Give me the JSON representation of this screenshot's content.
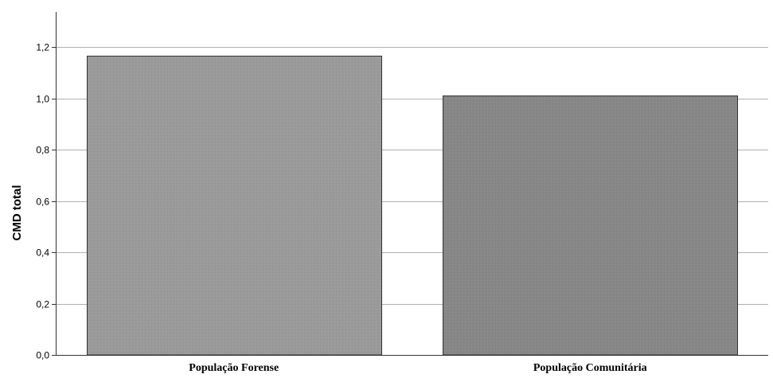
{
  "chart_data": {
    "type": "bar",
    "title": "",
    "xlabel": "",
    "ylabel": "CMD total",
    "categories": [
      "População Forense",
      "População Comunitária"
    ],
    "values": [
      1.165,
      1.01
    ],
    "ylim": [
      0,
      1.2
    ],
    "yticks": [
      "0,0",
      "0,2",
      "0,4",
      "0,6",
      "0,8",
      "1,0",
      "1,2"
    ],
    "ytick_values": [
      0,
      0.2,
      0.4,
      0.6,
      0.8,
      1.0,
      1.2
    ],
    "grid": true,
    "legend": "none",
    "bar_colors": [
      "#9a9a9a",
      "#878787"
    ],
    "bar_outline_color": "#333333",
    "grid_color": "#b0b0b0",
    "axis_color": "#333333"
  }
}
